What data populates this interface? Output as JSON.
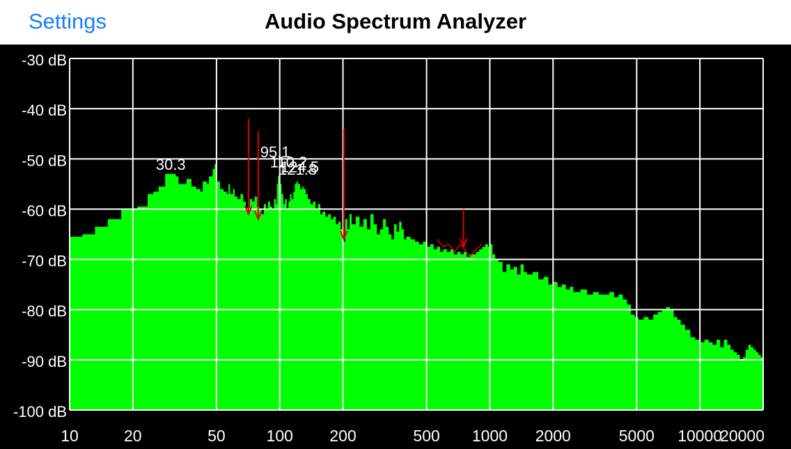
{
  "nav": {
    "back_label": "Settings",
    "title": "Audio Spectrum Analyzer"
  },
  "colors": {
    "spectrum_fill": "#00FF00",
    "marker": "#E00000",
    "grid": "#FFFFFF",
    "background": "#000000",
    "nav_link": "#147EFB"
  },
  "chart_data": {
    "type": "area",
    "title": "",
    "xlabel": "",
    "ylabel": "",
    "x_scale": "log",
    "xlim": [
      10,
      20000
    ],
    "ylim": [
      -100,
      -30
    ],
    "grid": true,
    "y_ticks": [
      {
        "value": -30,
        "label": "-30 dB"
      },
      {
        "value": -40,
        "label": "-40 dB"
      },
      {
        "value": -50,
        "label": "-50 dB"
      },
      {
        "value": -60,
        "label": "-60 dB"
      },
      {
        "value": -70,
        "label": "-70 dB"
      },
      {
        "value": -80,
        "label": "-80 dB"
      },
      {
        "value": -90,
        "label": "-90 dB"
      },
      {
        "value": -100,
        "label": "-100 dB"
      }
    ],
    "x_ticks": [
      {
        "value": 10,
        "label": "10"
      },
      {
        "value": 20,
        "label": "20"
      },
      {
        "value": 50,
        "label": "50"
      },
      {
        "value": 100,
        "label": "100"
      },
      {
        "value": 200,
        "label": "200"
      },
      {
        "value": 500,
        "label": "500"
      },
      {
        "value": 1000,
        "label": "1000"
      },
      {
        "value": 2000,
        "label": "2000"
      },
      {
        "value": 5000,
        "label": "5000"
      },
      {
        "value": 10000,
        "label": "10000"
      },
      {
        "value": 20000,
        "label": "20000"
      }
    ],
    "spectrum": [
      [
        10,
        -65.5
      ],
      [
        11.5,
        -65
      ],
      [
        13,
        -65
      ],
      [
        13.2,
        -63.5
      ],
      [
        15,
        -63.5
      ],
      [
        15.2,
        -62
      ],
      [
        17.5,
        -62
      ],
      [
        17.6,
        -60
      ],
      [
        20,
        -60
      ],
      [
        21,
        -59.5
      ],
      [
        23,
        -59.5
      ],
      [
        23.5,
        -57
      ],
      [
        25,
        -56.5
      ],
      [
        26,
        -56.5
      ],
      [
        26.5,
        -55.5
      ],
      [
        28,
        -55.5
      ],
      [
        28.5,
        -53
      ],
      [
        31,
        -53
      ],
      [
        32,
        -53.5
      ],
      [
        33,
        -55
      ],
      [
        35,
        -55
      ],
      [
        36,
        -54
      ],
      [
        38,
        -55.5
      ],
      [
        40,
        -56
      ],
      [
        42,
        -56.5
      ],
      [
        43,
        -54.5
      ],
      [
        45,
        -55
      ],
      [
        46,
        -53.5
      ],
      [
        48,
        -52
      ],
      [
        49,
        -51
      ],
      [
        50,
        -54.5
      ],
      [
        52,
        -56
      ],
      [
        54,
        -56.5
      ],
      [
        56,
        -57
      ],
      [
        57,
        -55
      ],
      [
        58,
        -57
      ],
      [
        60,
        -56
      ],
      [
        61,
        -57.5
      ],
      [
        63,
        -58
      ],
      [
        65,
        -57
      ],
      [
        67,
        -58.5
      ],
      [
        69,
        -60
      ],
      [
        70,
        -61
      ],
      [
        71,
        -60
      ],
      [
        72,
        -58
      ],
      [
        74,
        -58.5
      ],
      [
        76,
        -57.5
      ],
      [
        78,
        -59.5
      ],
      [
        80,
        -60
      ],
      [
        82,
        -61
      ],
      [
        84,
        -59
      ],
      [
        86,
        -60
      ],
      [
        88,
        -58.5
      ],
      [
        90,
        -59.5
      ],
      [
        92,
        -60
      ],
      [
        94,
        -58
      ],
      [
        96,
        -59
      ],
      [
        97,
        -55
      ],
      [
        98,
        -53.5
      ],
      [
        99,
        -53
      ],
      [
        100,
        -55
      ],
      [
        102,
        -57
      ],
      [
        104,
        -59
      ],
      [
        106,
        -58
      ],
      [
        108,
        -60
      ],
      [
        110,
        -58.5
      ],
      [
        112,
        -57
      ],
      [
        114,
        -58
      ],
      [
        116,
        -56.5
      ],
      [
        118,
        -55
      ],
      [
        120,
        -54.5
      ],
      [
        122,
        -55
      ],
      [
        125,
        -56
      ],
      [
        128,
        -55.5
      ],
      [
        130,
        -56
      ],
      [
        133,
        -57
      ],
      [
        136,
        -58
      ],
      [
        140,
        -59
      ],
      [
        144,
        -58.5
      ],
      [
        148,
        -60
      ],
      [
        152,
        -59
      ],
      [
        156,
        -61
      ],
      [
        160,
        -60.5
      ],
      [
        165,
        -61.5
      ],
      [
        170,
        -61
      ],
      [
        175,
        -62
      ],
      [
        180,
        -61.5
      ],
      [
        185,
        -63
      ],
      [
        190,
        -62.5
      ],
      [
        195,
        -64
      ],
      [
        200,
        -66.5
      ],
      [
        205,
        -62
      ],
      [
        210,
        -64
      ],
      [
        215,
        -61
      ],
      [
        220,
        -63
      ],
      [
        230,
        -61.5
      ],
      [
        240,
        -63.5
      ],
      [
        250,
        -62
      ],
      [
        260,
        -64
      ],
      [
        270,
        -61
      ],
      [
        280,
        -63
      ],
      [
        290,
        -65
      ],
      [
        300,
        -64
      ],
      [
        310,
        -62
      ],
      [
        320,
        -63.5
      ],
      [
        330,
        -65
      ],
      [
        340,
        -66
      ],
      [
        350,
        -63
      ],
      [
        360,
        -64.5
      ],
      [
        370,
        -62.5
      ],
      [
        380,
        -64
      ],
      [
        390,
        -66
      ],
      [
        400,
        -65.5
      ],
      [
        420,
        -66
      ],
      [
        440,
        -66.5
      ],
      [
        460,
        -67
      ],
      [
        480,
        -66.5
      ],
      [
        500,
        -67.5
      ],
      [
        520,
        -67
      ],
      [
        540,
        -68
      ],
      [
        560,
        -67.5
      ],
      [
        580,
        -68.5
      ],
      [
        600,
        -68
      ],
      [
        625,
        -68.5
      ],
      [
        650,
        -68
      ],
      [
        675,
        -69
      ],
      [
        700,
        -68.5
      ],
      [
        725,
        -69
      ],
      [
        750,
        -68.5
      ],
      [
        775,
        -69.5
      ],
      [
        800,
        -69
      ],
      [
        830,
        -69
      ],
      [
        860,
        -68.5
      ],
      [
        890,
        -68
      ],
      [
        920,
        -67.5
      ],
      [
        950,
        -67
      ],
      [
        980,
        -67.5
      ],
      [
        1000,
        -67
      ],
      [
        1030,
        -69
      ],
      [
        1060,
        -70
      ],
      [
        1100,
        -70.5
      ],
      [
        1150,
        -72.5
      ],
      [
        1200,
        -71
      ],
      [
        1250,
        -72
      ],
      [
        1300,
        -71.5
      ],
      [
        1350,
        -73
      ],
      [
        1400,
        -71
      ],
      [
        1450,
        -72.5
      ],
      [
        1500,
        -73
      ],
      [
        1600,
        -72.5
      ],
      [
        1700,
        -74
      ],
      [
        1800,
        -73.5
      ],
      [
        1900,
        -75
      ],
      [
        2000,
        -74.5
      ],
      [
        2100,
        -75.5
      ],
      [
        2200,
        -75
      ],
      [
        2300,
        -76
      ],
      [
        2400,
        -75.5
      ],
      [
        2500,
        -76.5
      ],
      [
        2700,
        -76
      ],
      [
        2900,
        -77
      ],
      [
        3100,
        -76.5
      ],
      [
        3300,
        -77
      ],
      [
        3500,
        -77
      ],
      [
        3700,
        -76.5
      ],
      [
        3900,
        -77.5
      ],
      [
        4100,
        -77
      ],
      [
        4300,
        -78
      ],
      [
        4500,
        -79
      ],
      [
        4700,
        -81
      ],
      [
        4900,
        -81.5
      ],
      [
        5100,
        -82
      ],
      [
        5400,
        -81.5
      ],
      [
        5700,
        -82
      ],
      [
        6000,
        -81
      ],
      [
        6300,
        -80.5
      ],
      [
        6600,
        -80
      ],
      [
        6900,
        -79.5
      ],
      [
        7200,
        -80
      ],
      [
        7500,
        -81.5
      ],
      [
        7800,
        -82
      ],
      [
        8100,
        -83
      ],
      [
        8500,
        -84
      ],
      [
        9000,
        -85.5
      ],
      [
        9500,
        -86
      ],
      [
        10000,
        -86.5
      ],
      [
        10500,
        -86
      ],
      [
        11000,
        -86.5
      ],
      [
        11500,
        -87
      ],
      [
        12000,
        -86
      ],
      [
        12500,
        -87.5
      ],
      [
        13000,
        -86
      ],
      [
        13500,
        -87
      ],
      [
        14000,
        -88
      ],
      [
        14500,
        -88.5
      ],
      [
        15000,
        -89
      ],
      [
        15500,
        -90
      ],
      [
        16000,
        -89.5
      ],
      [
        16500,
        -88
      ],
      [
        17000,
        -87
      ],
      [
        17500,
        -87.5
      ],
      [
        18000,
        -88
      ],
      [
        18500,
        -88.5
      ],
      [
        19000,
        -89
      ],
      [
        19500,
        -89.5
      ],
      [
        20000,
        -90
      ]
    ],
    "peak_labels": [
      {
        "text": "30.3",
        "x": 30.3,
        "y": -53
      },
      {
        "text": "95.1",
        "x": 95.1,
        "y": -50.5
      },
      {
        "text": "110.2",
        "x": 110.2,
        "y": -52.5
      },
      {
        "text": "124.5",
        "x": 124.5,
        "y": -53.5
      },
      {
        "text": "121.8",
        "x": 121.8,
        "y": -54
      }
    ],
    "markers": [
      {
        "x": 71,
        "y_top": -42,
        "y_bottom": -61
      },
      {
        "x": 79,
        "y_top": -44.5,
        "y_bottom": -62
      },
      {
        "x": 202,
        "y_top": -44,
        "y_bottom": -66
      },
      {
        "x": 750,
        "y_top": -60,
        "y_bottom": -67.5
      }
    ],
    "marker_trace": [
      [
        560,
        -66
      ],
      [
        600,
        -67.5
      ],
      [
        640,
        -67
      ],
      [
        680,
        -68.5
      ],
      [
        720,
        -67
      ],
      [
        760,
        -68
      ],
      [
        800,
        -69.5
      ],
      [
        860,
        -68
      ],
      [
        920,
        -67
      ]
    ]
  }
}
